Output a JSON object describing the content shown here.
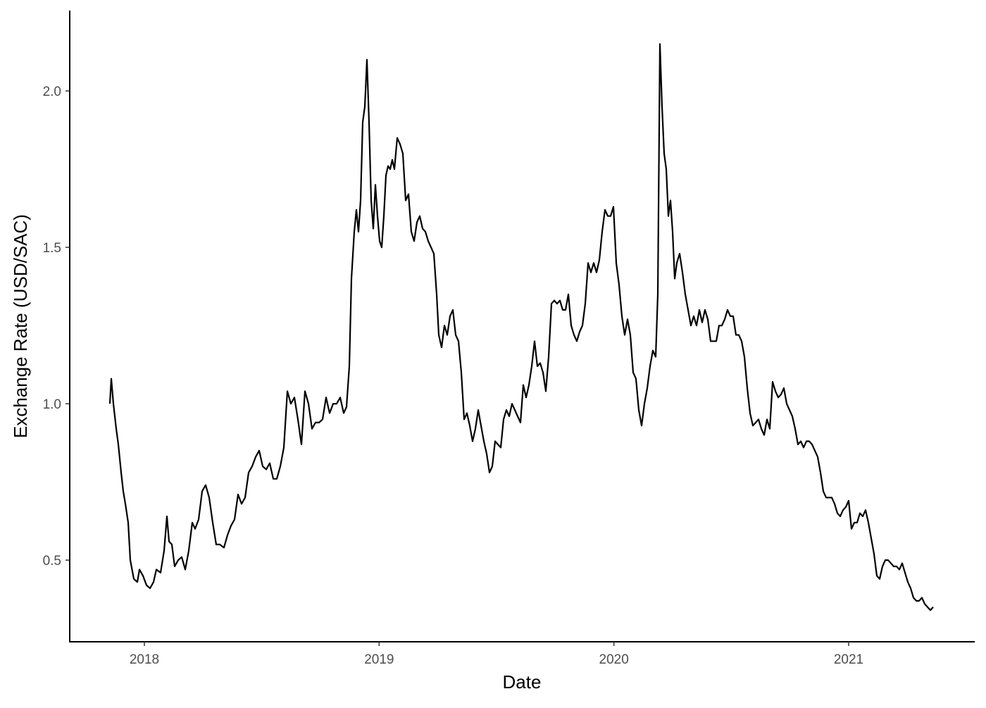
{
  "chart_data": {
    "type": "line",
    "x_label": "Date",
    "y_label": "Exchange Rate (USD/SAC)",
    "color": "#000000",
    "xlim": [
      2017.682,
      2021.534
    ],
    "ylim": [
      0.239,
      2.257
    ],
    "xticks": [
      2018,
      2019,
      2020,
      2021
    ],
    "yticks": [
      0.5,
      {
        "value": 1,
        "label": "1.0"
      },
      1.5,
      {
        "value": 2,
        "label": "2.0"
      }
    ],
    "x": [
      2017.853,
      2017.859,
      2017.868,
      2017.88,
      2017.889,
      2017.901,
      2017.91,
      2017.919,
      2017.931,
      2017.94,
      2017.955,
      2017.97,
      2017.979,
      2017.994,
      2018.009,
      2018.024,
      2018.039,
      2018.051,
      2018.069,
      2018.084,
      2018.096,
      2018.105,
      2018.117,
      2018.129,
      2018.144,
      2018.159,
      2018.174,
      2018.189,
      2018.204,
      2018.216,
      2018.231,
      2018.246,
      2018.261,
      2018.276,
      2018.291,
      2018.306,
      2018.321,
      2018.339,
      2018.354,
      2018.369,
      2018.384,
      2018.399,
      2018.414,
      2018.429,
      2018.444,
      2018.459,
      2018.474,
      2018.489,
      2018.504,
      2018.519,
      2018.534,
      2018.549,
      2018.564,
      2018.579,
      2018.594,
      2018.609,
      2018.624,
      2018.639,
      2018.654,
      2018.669,
      2018.684,
      2018.699,
      2018.714,
      2018.729,
      2018.744,
      2018.759,
      2018.774,
      2018.789,
      2018.804,
      2018.819,
      2018.834,
      2018.849,
      2018.861,
      2018.873,
      2018.882,
      2018.894,
      2018.903,
      2018.912,
      2018.921,
      2018.93,
      2018.939,
      2018.948,
      2018.957,
      2018.966,
      2018.975,
      2018.984,
      2018.993,
      2019.002,
      2019.011,
      2019.02,
      2019.029,
      2019.038,
      2019.047,
      2019.056,
      2019.065,
      2019.077,
      2019.089,
      2019.101,
      2019.113,
      2019.125,
      2019.137,
      2019.149,
      2019.161,
      2019.173,
      2019.185,
      2019.197,
      2019.209,
      2019.221,
      2019.233,
      2019.245,
      2019.254,
      2019.266,
      2019.278,
      2019.29,
      2019.302,
      2019.314,
      2019.326,
      2019.338,
      2019.35,
      2019.362,
      2019.374,
      2019.386,
      2019.398,
      2019.41,
      2019.422,
      2019.434,
      2019.446,
      2019.458,
      2019.47,
      2019.482,
      2019.494,
      2019.506,
      2019.518,
      2019.53,
      2019.542,
      2019.554,
      2019.566,
      2019.578,
      2019.59,
      2019.602,
      2019.614,
      2019.626,
      2019.638,
      2019.65,
      2019.662,
      2019.674,
      2019.686,
      2019.698,
      2019.71,
      2019.722,
      2019.734,
      2019.746,
      2019.758,
      2019.77,
      2019.782,
      2019.794,
      2019.806,
      2019.818,
      2019.83,
      2019.842,
      2019.854,
      2019.866,
      2019.878,
      2019.89,
      2019.902,
      2019.914,
      2019.926,
      2019.938,
      2019.95,
      2019.962,
      2019.974,
      2019.986,
      2019.998,
      2020.01,
      2020.022,
      2020.034,
      2020.046,
      2020.058,
      2020.07,
      2020.082,
      2020.094,
      2020.106,
      2020.118,
      2020.13,
      2020.142,
      2020.154,
      2020.166,
      2020.178,
      2020.187,
      2020.196,
      2020.205,
      2020.214,
      2020.223,
      2020.232,
      2020.241,
      2020.25,
      2020.259,
      2020.268,
      2020.28,
      2020.292,
      2020.304,
      2020.316,
      2020.328,
      2020.34,
      2020.352,
      2020.364,
      2020.376,
      2020.388,
      2020.4,
      2020.412,
      2020.424,
      2020.436,
      2020.448,
      2020.46,
      2020.472,
      2020.484,
      2020.496,
      2020.508,
      2020.52,
      2020.532,
      2020.544,
      2020.556,
      2020.568,
      2020.58,
      2020.592,
      2020.604,
      2020.616,
      2020.628,
      2020.64,
      2020.652,
      2020.664,
      2020.676,
      2020.688,
      2020.7,
      2020.712,
      2020.724,
      2020.736,
      2020.748,
      2020.76,
      2020.772,
      2020.784,
      2020.796,
      2020.808,
      2020.82,
      2020.832,
      2020.844,
      2020.856,
      2020.868,
      2020.88,
      2020.892,
      2020.904,
      2020.916,
      2020.928,
      2020.94,
      2020.952,
      2020.964,
      2020.976,
      2020.988,
      2021.0,
      2021.012,
      2021.024,
      2021.036,
      2021.048,
      2021.06,
      2021.072,
      2021.084,
      2021.096,
      2021.108,
      2021.12,
      2021.132,
      2021.144,
      2021.156,
      2021.168,
      2021.18,
      2021.192,
      2021.204,
      2021.216,
      2021.228,
      2021.24,
      2021.252,
      2021.264,
      2021.276,
      2021.288,
      2021.3,
      2021.312,
      2021.324,
      2021.336,
      2021.348,
      2021.36
    ],
    "values": [
      1.0,
      1.08,
      1.0,
      0.92,
      0.87,
      0.78,
      0.72,
      0.68,
      0.62,
      0.5,
      0.44,
      0.43,
      0.47,
      0.45,
      0.42,
      0.41,
      0.43,
      0.47,
      0.46,
      0.53,
      0.64,
      0.56,
      0.55,
      0.48,
      0.5,
      0.51,
      0.47,
      0.53,
      0.62,
      0.6,
      0.63,
      0.72,
      0.74,
      0.7,
      0.62,
      0.55,
      0.55,
      0.54,
      0.58,
      0.61,
      0.63,
      0.71,
      0.68,
      0.7,
      0.78,
      0.8,
      0.83,
      0.85,
      0.8,
      0.79,
      0.81,
      0.76,
      0.76,
      0.8,
      0.86,
      1.04,
      1.0,
      1.02,
      0.95,
      0.87,
      1.04,
      1.0,
      0.92,
      0.94,
      0.94,
      0.95,
      1.02,
      0.97,
      1.0,
      1.0,
      1.02,
      0.97,
      0.99,
      1.12,
      1.4,
      1.55,
      1.62,
      1.55,
      1.65,
      1.9,
      1.95,
      2.1,
      1.9,
      1.65,
      1.56,
      1.7,
      1.6,
      1.52,
      1.5,
      1.6,
      1.73,
      1.76,
      1.75,
      1.78,
      1.75,
      1.85,
      1.83,
      1.8,
      1.65,
      1.67,
      1.55,
      1.52,
      1.58,
      1.6,
      1.56,
      1.55,
      1.52,
      1.5,
      1.48,
      1.35,
      1.22,
      1.18,
      1.25,
      1.22,
      1.28,
      1.3,
      1.22,
      1.2,
      1.1,
      0.95,
      0.97,
      0.93,
      0.88,
      0.92,
      0.98,
      0.93,
      0.88,
      0.84,
      0.78,
      0.8,
      0.88,
      0.87,
      0.86,
      0.95,
      0.98,
      0.96,
      1.0,
      0.98,
      0.96,
      0.94,
      1.06,
      1.02,
      1.06,
      1.12,
      1.2,
      1.12,
      1.13,
      1.1,
      1.04,
      1.15,
      1.32,
      1.33,
      1.32,
      1.33,
      1.3,
      1.3,
      1.35,
      1.25,
      1.22,
      1.2,
      1.23,
      1.25,
      1.32,
      1.45,
      1.42,
      1.45,
      1.42,
      1.46,
      1.55,
      1.62,
      1.6,
      1.6,
      1.63,
      1.45,
      1.38,
      1.28,
      1.22,
      1.27,
      1.22,
      1.1,
      1.08,
      0.98,
      0.93,
      1.0,
      1.05,
      1.12,
      1.17,
      1.15,
      1.35,
      2.15,
      1.95,
      1.8,
      1.75,
      1.6,
      1.65,
      1.55,
      1.4,
      1.45,
      1.48,
      1.42,
      1.35,
      1.3,
      1.25,
      1.28,
      1.25,
      1.3,
      1.26,
      1.3,
      1.27,
      1.2,
      1.2,
      1.2,
      1.25,
      1.25,
      1.27,
      1.3,
      1.28,
      1.28,
      1.22,
      1.22,
      1.2,
      1.15,
      1.05,
      0.97,
      0.93,
      0.94,
      0.95,
      0.92,
      0.9,
      0.95,
      0.92,
      1.07,
      1.04,
      1.02,
      1.03,
      1.05,
      1.0,
      0.98,
      0.96,
      0.92,
      0.87,
      0.88,
      0.86,
      0.88,
      0.88,
      0.87,
      0.85,
      0.83,
      0.78,
      0.72,
      0.7,
      0.7,
      0.7,
      0.68,
      0.65,
      0.64,
      0.66,
      0.67,
      0.69,
      0.6,
      0.62,
      0.62,
      0.65,
      0.64,
      0.66,
      0.62,
      0.57,
      0.52,
      0.45,
      0.44,
      0.48,
      0.5,
      0.5,
      0.49,
      0.48,
      0.48,
      0.47,
      0.49,
      0.46,
      0.43,
      0.41,
      0.38,
      0.37,
      0.37,
      0.38,
      0.36,
      0.35,
      0.34,
      0.35
    ]
  }
}
